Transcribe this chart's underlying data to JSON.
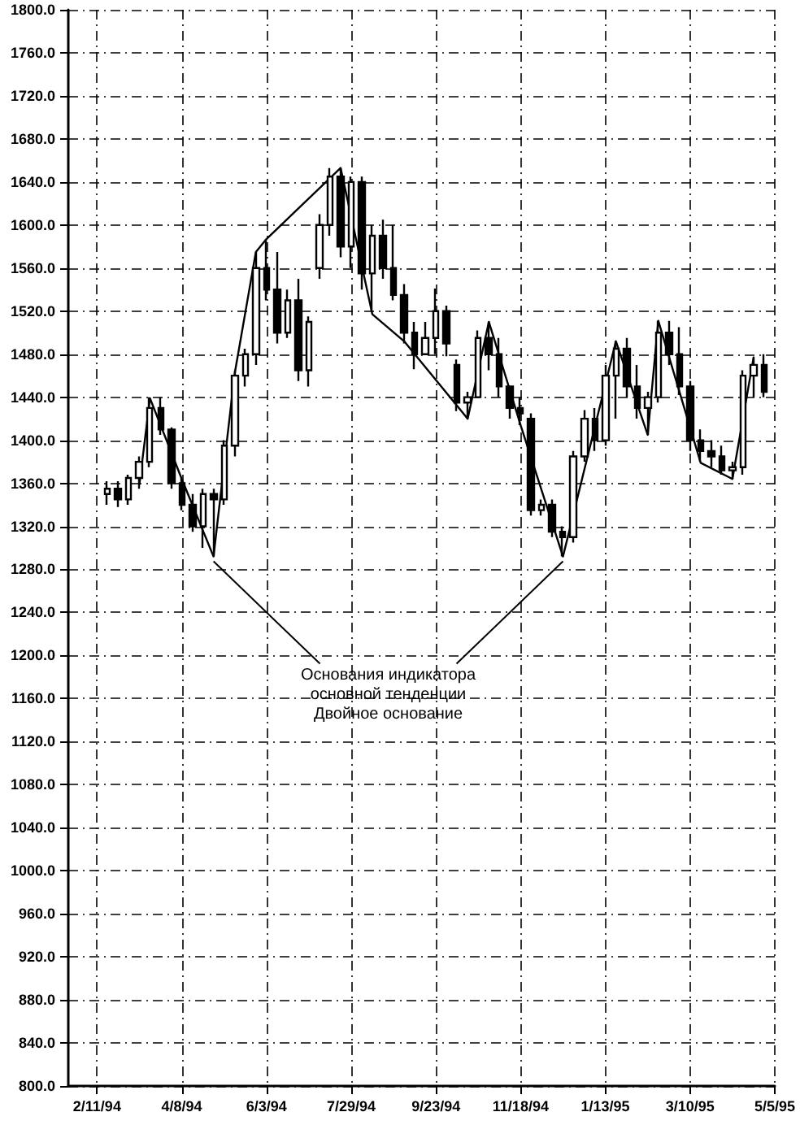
{
  "chart_data": {
    "type": "candlestick",
    "color": "#000000",
    "x": [
      "1994-02-18",
      "1994-02-25",
      "1994-03-04",
      "1994-03-11",
      "1994-03-18",
      "1994-03-25",
      "1994-04-01",
      "1994-04-08",
      "1994-04-15",
      "1994-04-22",
      "1994-04-29",
      "1994-05-06",
      "1994-05-13",
      "1994-05-20",
      "1994-05-27",
      "1994-06-03",
      "1994-06-10",
      "1994-06-17",
      "1994-06-24",
      "1994-07-01",
      "1994-07-08",
      "1994-07-15",
      "1994-07-22",
      "1994-07-29",
      "1994-08-05",
      "1994-08-12",
      "1994-08-19",
      "1994-08-26",
      "1994-09-02",
      "1994-09-09",
      "1994-09-16",
      "1994-09-23",
      "1994-09-30",
      "1994-10-07",
      "1994-10-14",
      "1994-10-21",
      "1994-10-28",
      "1994-11-04",
      "1994-11-11",
      "1994-11-18",
      "1994-11-25",
      "1994-12-02",
      "1994-12-09",
      "1994-12-16",
      "1994-12-23",
      "1994-12-30",
      "1995-01-06",
      "1995-01-13",
      "1995-01-20",
      "1995-01-27",
      "1995-02-03",
      "1995-02-10",
      "1995-02-17",
      "1995-02-24",
      "1995-03-03",
      "1995-03-10",
      "1995-03-17",
      "1995-03-24",
      "1995-03-31",
      "1995-04-07",
      "1995-04-14",
      "1995-04-21",
      "1995-04-28"
    ],
    "ohlc": [
      [
        1350,
        1362,
        1340,
        1355
      ],
      [
        1355,
        1362,
        1338,
        1345
      ],
      [
        1345,
        1368,
        1340,
        1365
      ],
      [
        1365,
        1385,
        1355,
        1380
      ],
      [
        1380,
        1440,
        1375,
        1430
      ],
      [
        1430,
        1440,
        1405,
        1410
      ],
      [
        1410,
        1412,
        1355,
        1360
      ],
      [
        1360,
        1365,
        1335,
        1340
      ],
      [
        1340,
        1350,
        1315,
        1320
      ],
      [
        1320,
        1355,
        1300,
        1350
      ],
      [
        1350,
        1355,
        1292,
        1345
      ],
      [
        1345,
        1400,
        1340,
        1395
      ],
      [
        1395,
        1465,
        1385,
        1460
      ],
      [
        1460,
        1485,
        1450,
        1480
      ],
      [
        1480,
        1575,
        1470,
        1560
      ],
      [
        1560,
        1587,
        1530,
        1540
      ],
      [
        1540,
        1575,
        1490,
        1500
      ],
      [
        1500,
        1540,
        1495,
        1530
      ],
      [
        1530,
        1550,
        1455,
        1465
      ],
      [
        1465,
        1515,
        1450,
        1510
      ],
      [
        1560,
        1610,
        1550,
        1600
      ],
      [
        1600,
        1653,
        1590,
        1645
      ],
      [
        1645,
        1653,
        1570,
        1580
      ],
      [
        1580,
        1645,
        1560,
        1640
      ],
      [
        1640,
        1645,
        1540,
        1555
      ],
      [
        1555,
        1600,
        1520,
        1590
      ],
      [
        1590,
        1605,
        1550,
        1560
      ],
      [
        1560,
        1600,
        1530,
        1535
      ],
      [
        1535,
        1545,
        1490,
        1500
      ],
      [
        1500,
        1510,
        1466,
        1480
      ],
      [
        1480,
        1510,
        1480,
        1495
      ],
      [
        1495,
        1541,
        1480,
        1520
      ],
      [
        1520,
        1525,
        1478,
        1490
      ],
      [
        1470,
        1475,
        1427,
        1435
      ],
      [
        1435,
        1445,
        1420,
        1440
      ],
      [
        1440,
        1502,
        1440,
        1495
      ],
      [
        1495,
        1510,
        1465,
        1480
      ],
      [
        1480,
        1495,
        1440,
        1450
      ],
      [
        1450,
        1450,
        1420,
        1430
      ],
      [
        1430,
        1440,
        1414,
        1425
      ],
      [
        1420,
        1425,
        1330,
        1335
      ],
      [
        1335,
        1345,
        1330,
        1340
      ],
      [
        1340,
        1345,
        1310,
        1315
      ],
      [
        1315,
        1320,
        1292,
        1310
      ],
      [
        1310,
        1390,
        1305,
        1385
      ],
      [
        1385,
        1428,
        1380,
        1420
      ],
      [
        1420,
        1430,
        1390,
        1400
      ],
      [
        1400,
        1470,
        1395,
        1460
      ],
      [
        1460,
        1492,
        1420,
        1485
      ],
      [
        1485,
        1495,
        1440,
        1450
      ],
      [
        1450,
        1470,
        1420,
        1430
      ],
      [
        1430,
        1445,
        1405,
        1440
      ],
      [
        1440,
        1511,
        1435,
        1500
      ],
      [
        1500,
        1511,
        1470,
        1480
      ],
      [
        1480,
        1505,
        1442,
        1450
      ],
      [
        1450,
        1455,
        1390,
        1400
      ],
      [
        1400,
        1410,
        1380,
        1390
      ],
      [
        1390,
        1400,
        1375,
        1385
      ],
      [
        1385,
        1395,
        1368,
        1372
      ],
      [
        1372,
        1380,
        1364,
        1375
      ],
      [
        1375,
        1465,
        1368,
        1460
      ],
      [
        1460,
        1477,
        1440,
        1470
      ],
      [
        1470,
        1480,
        1440,
        1445
      ]
    ],
    "series": [
      {
        "type": "line",
        "color": "#000000",
        "x": [
          "1994-03-11",
          "1994-03-18",
          "1994-03-25",
          "1994-04-08",
          "1994-04-29",
          "1994-05-13",
          "1994-05-27",
          "1994-06-03",
          "1994-07-22",
          "1994-08-12",
          "1994-09-02",
          "1994-10-14",
          "1994-10-28",
          "1994-11-18",
          "1994-12-16",
          "1995-01-20",
          "1995-02-10",
          "1995-02-17",
          "1995-03-17",
          "1995-04-07",
          "1995-04-21"
        ],
        "values": [
          1359,
          1439,
          1414,
          1364,
          1292,
          1462,
          1575,
          1587,
          1653,
          1517,
          1492,
          1420,
          1510,
          1414,
          1292,
          1492,
          1405,
          1511,
          1379,
          1364,
          1477
        ]
      }
    ],
    "marker": "none",
    "xlim": [
      "1994-01-23",
      "1995-05-05"
    ],
    "xticks": [
      {
        "value": "1994-02-11",
        "label": "2/11/94"
      },
      {
        "value": "1994-04-08",
        "label": "4/8/94"
      },
      {
        "value": "1994-06-03",
        "label": "6/3/94"
      },
      {
        "value": "1994-07-29",
        "label": "7/29/94"
      },
      {
        "value": "1994-09-23",
        "label": "9/23/94"
      },
      {
        "value": "1994-11-18",
        "label": "11/18/94"
      },
      {
        "value": "1995-01-13",
        "label": "1/13/95"
      },
      {
        "value": "1995-03-10",
        "label": "3/10/95"
      },
      {
        "value": "1995-05-05",
        "label": "5/5/95"
      }
    ],
    "ylim": [
      800,
      1800
    ],
    "yticks": [
      {
        "value": 800,
        "label": "800.0"
      },
      {
        "value": 840,
        "label": "840.0"
      },
      {
        "value": 880,
        "label": "880.0"
      },
      {
        "value": 920,
        "label": "920.0"
      },
      {
        "value": 960,
        "label": "960.0"
      },
      {
        "value": 1000,
        "label": "1000.0"
      },
      {
        "value": 1040,
        "label": "1040.0"
      },
      {
        "value": 1080,
        "label": "1080.0"
      },
      {
        "value": 1120,
        "label": "1120.0"
      },
      {
        "value": 1160,
        "label": "1160.0"
      },
      {
        "value": 1200,
        "label": "1200.0"
      },
      {
        "value": 1240,
        "label": "1240.0"
      },
      {
        "value": 1280,
        "label": "1280.0"
      },
      {
        "value": 1320,
        "label": "1320.0"
      },
      {
        "value": 1360,
        "label": "1360.0"
      },
      {
        "value": 1400,
        "label": "1400.0"
      },
      {
        "value": 1440,
        "label": "1440.0"
      },
      {
        "value": 1480,
        "label": "1480.0"
      },
      {
        "value": 1520,
        "label": "1520.0"
      },
      {
        "value": 1560,
        "label": "1560.0"
      },
      {
        "value": 1600,
        "label": "1600.0"
      },
      {
        "value": 1640,
        "label": "1640.0"
      },
      {
        "value": 1680,
        "label": "1680.0"
      },
      {
        "value": 1720,
        "label": "1720.0"
      },
      {
        "value": 1760,
        "label": "1760.0"
      },
      {
        "value": 1800,
        "label": "1800.0"
      }
    ],
    "grid": true,
    "line_style": "solid",
    "annotations": [
      {
        "text": "Основания индикатора\nосновной тенденции\nДвойное основание",
        "x": "1994-04-29",
        "y": 1292
      }
    ]
  }
}
